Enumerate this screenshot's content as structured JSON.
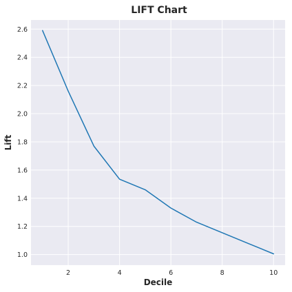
{
  "chart_data": {
    "type": "line",
    "title": "LIFT Chart",
    "xlabel": "Decile",
    "ylabel": "Lift",
    "x": [
      1,
      2,
      3,
      4,
      5,
      6,
      7,
      8,
      9,
      10
    ],
    "series": [
      {
        "values": [
          2.59,
          2.16,
          1.77,
          1.535,
          1.46,
          1.33,
          1.23,
          1.155,
          1.08,
          1.005
        ],
        "color": "#1f77b4"
      }
    ],
    "xlim": [
      0.55,
      10.45
    ],
    "ylim": [
      0.925,
      2.665
    ],
    "xticks": [
      2,
      4,
      6,
      8,
      10
    ],
    "yticks": [
      1.0,
      1.2,
      1.4,
      1.6,
      1.8,
      2.0,
      2.2,
      2.4,
      2.6
    ],
    "xtick_labels": [
      "2",
      "4",
      "6",
      "8",
      "10"
    ],
    "ytick_labels": [
      "1.0",
      "1.2",
      "1.4",
      "1.6",
      "1.8",
      "2.0",
      "2.2",
      "2.4",
      "2.6"
    ],
    "grid": true,
    "background": "#eaeaf2"
  }
}
